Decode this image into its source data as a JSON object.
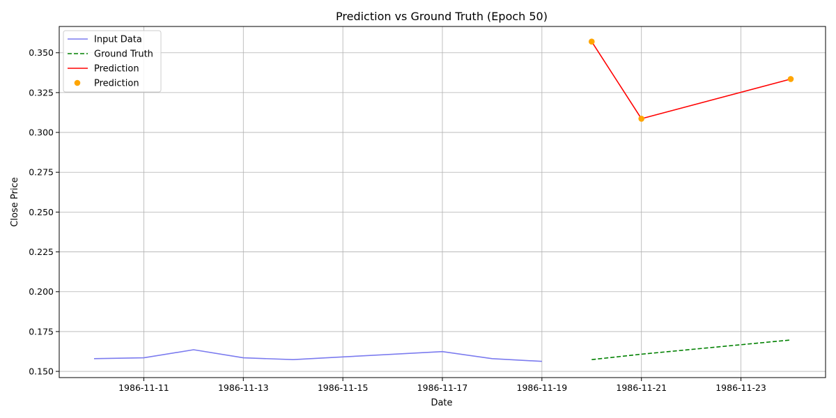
{
  "chart_data": {
    "type": "line",
    "title": "Prediction vs Ground Truth (Epoch 50)",
    "xlabel": "Date",
    "ylabel": "Close Price",
    "xlim": [
      "1986-11-09T07:12",
      "1986-11-24T16:48"
    ],
    "ylim": [
      0.1461,
      0.3665
    ],
    "x_ticks": [
      "1986-11-11",
      "1986-11-13",
      "1986-11-15",
      "1986-11-17",
      "1986-11-19",
      "1986-11-21",
      "1986-11-23"
    ],
    "y_ticks": [
      "0.150",
      "0.175",
      "0.200",
      "0.225",
      "0.250",
      "0.275",
      "0.300",
      "0.325",
      "0.350"
    ],
    "grid": true,
    "legend_position": "top-left",
    "series": [
      {
        "name": "Input Data",
        "kind": "line",
        "color": "#7b7bef",
        "dash": "solid",
        "x": [
          "1986-11-10",
          "1986-11-11",
          "1986-11-12",
          "1986-11-13",
          "1986-11-14",
          "1986-11-15",
          "1986-11-17",
          "1986-11-18",
          "1986-11-19"
        ],
        "y": [
          0.158,
          0.1585,
          0.1636,
          0.1585,
          0.1574,
          0.1591,
          0.1624,
          0.158,
          0.1563
        ]
      },
      {
        "name": "Ground Truth",
        "kind": "line",
        "color": "#008000",
        "dash": "dashed",
        "x": [
          "1986-11-20",
          "1986-11-21",
          "1986-11-24"
        ],
        "y": [
          0.1574,
          0.1608,
          0.1697
        ]
      },
      {
        "name": "Prediction",
        "kind": "line",
        "color": "#ff0000",
        "dash": "solid",
        "x": [
          "1986-11-20",
          "1986-11-21",
          "1986-11-24"
        ],
        "y": [
          0.357,
          0.3086,
          0.3335
        ]
      },
      {
        "name": "Prediction",
        "kind": "scatter",
        "color": "#ffa500",
        "dash": "none",
        "x": [
          "1986-11-20",
          "1986-11-21",
          "1986-11-24"
        ],
        "y": [
          0.357,
          0.3086,
          0.3335
        ]
      }
    ]
  }
}
